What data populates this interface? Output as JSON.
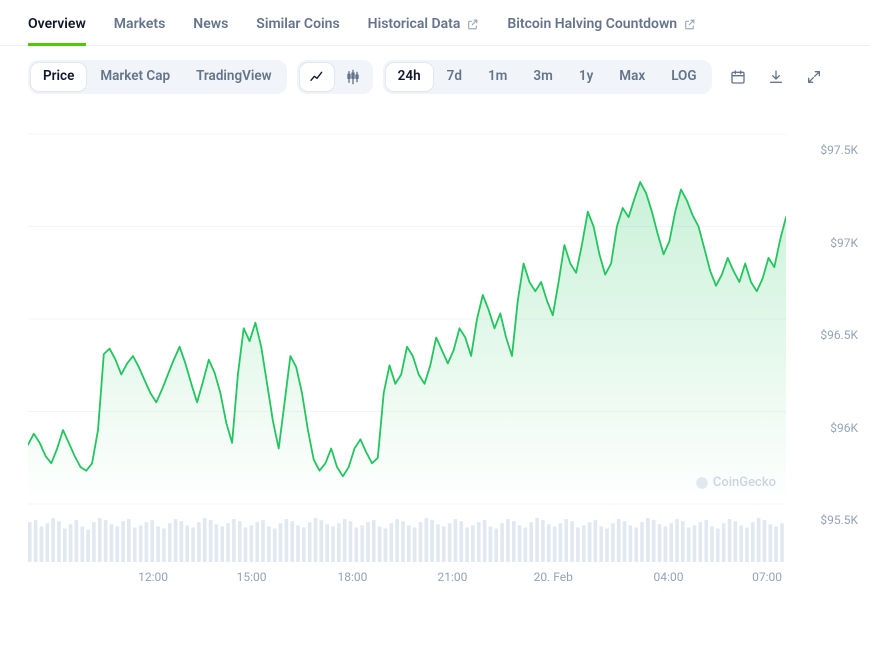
{
  "tabs": {
    "items": [
      {
        "label": "Overview",
        "active": true,
        "external": false
      },
      {
        "label": "Markets",
        "active": false,
        "external": false
      },
      {
        "label": "News",
        "active": false,
        "external": false
      },
      {
        "label": "Similar Coins",
        "active": false,
        "external": false
      },
      {
        "label": "Historical Data",
        "active": false,
        "external": true
      },
      {
        "label": "Bitcoin Halving Countdown",
        "active": false,
        "external": true
      }
    ]
  },
  "toolbar": {
    "metric_toggle": {
      "options": [
        "Price",
        "Market Cap",
        "TradingView"
      ],
      "active_index": 0
    },
    "chart_style_toggle": {
      "active_index": 0,
      "options": [
        "line",
        "candlestick"
      ]
    },
    "range_toggle": {
      "options": [
        "24h",
        "7d",
        "1m",
        "3m",
        "1y",
        "Max",
        "LOG"
      ],
      "active_index": 0
    }
  },
  "chart": {
    "type": "area",
    "line_color": "#22c55e",
    "area_gradient_top": "rgba(34,197,94,0.24)",
    "area_gradient_bottom": "rgba(34,197,94,0.00)",
    "grid_color": "#f1f5f9",
    "background_color": "#ffffff",
    "axis_text_color": "#94a3b8",
    "ymin": 95500,
    "ymax": 97500,
    "y_ticks": [
      {
        "value": 97500,
        "label": "$97.5K"
      },
      {
        "value": 97000,
        "label": "$97K"
      },
      {
        "value": 96500,
        "label": "$96.5K"
      },
      {
        "value": 96000,
        "label": "$96K"
      },
      {
        "value": 95500,
        "label": "$95.5K"
      }
    ],
    "x_ticks": [
      {
        "pos_pct": 16.5,
        "label": "12:00"
      },
      {
        "pos_pct": 29.5,
        "label": "15:00"
      },
      {
        "pos_pct": 42.8,
        "label": "18:00"
      },
      {
        "pos_pct": 56.0,
        "label": "21:00"
      },
      {
        "pos_pct": 69.3,
        "label": "20. Feb"
      },
      {
        "pos_pct": 84.5,
        "label": "04:00"
      },
      {
        "pos_pct": 97.5,
        "label": "07:00"
      }
    ],
    "series": [
      95820,
      95880,
      95830,
      95760,
      95720,
      95800,
      95900,
      95830,
      95760,
      95700,
      95680,
      95720,
      95900,
      96310,
      96340,
      96280,
      96200,
      96260,
      96300,
      96240,
      96170,
      96100,
      96050,
      96120,
      96200,
      96280,
      96350,
      96260,
      96150,
      96050,
      96160,
      96280,
      96210,
      96100,
      95940,
      95830,
      96200,
      96450,
      96380,
      96480,
      96350,
      96150,
      95950,
      95800,
      96050,
      96300,
      96240,
      96100,
      95900,
      95740,
      95680,
      95720,
      95800,
      95700,
      95650,
      95700,
      95800,
      95850,
      95780,
      95720,
      95750,
      96100,
      96250,
      96150,
      96200,
      96350,
      96300,
      96200,
      96150,
      96250,
      96400,
      96330,
      96260,
      96330,
      96450,
      96400,
      96300,
      96500,
      96630,
      96550,
      96450,
      96530,
      96400,
      96300,
      96600,
      96800,
      96700,
      96650,
      96700,
      96600,
      96520,
      96700,
      96900,
      96800,
      96750,
      96900,
      97080,
      97000,
      96850,
      96740,
      96800,
      97000,
      97100,
      97050,
      97150,
      97240,
      97180,
      97080,
      96960,
      96850,
      96920,
      97080,
      97200,
      97140,
      97060,
      97000,
      96880,
      96760,
      96680,
      96740,
      96830,
      96760,
      96700,
      96800,
      96700,
      96650,
      96720,
      96830,
      96780,
      96930,
      97050
    ],
    "watermark": "CoinGecko"
  },
  "volume": {
    "bar_color": "#e2e8f0",
    "bars": [
      34,
      36,
      30,
      33,
      38,
      35,
      28,
      32,
      36,
      30,
      27,
      34,
      38,
      36,
      32,
      30,
      35,
      37,
      29,
      31,
      34,
      36,
      30,
      28,
      33,
      37,
      35,
      31,
      29,
      34,
      38,
      36,
      32,
      30,
      33,
      37,
      35,
      29,
      31,
      34,
      36,
      30,
      28,
      33,
      37,
      35,
      31,
      29,
      34,
      38,
      36,
      32,
      30,
      33,
      37,
      35,
      29,
      31,
      34,
      36,
      30,
      28,
      33,
      37,
      35,
      31,
      29,
      34,
      38,
      36,
      32,
      30,
      33,
      37,
      35,
      29,
      31,
      34,
      36,
      30,
      28,
      33,
      37,
      35,
      31,
      29,
      34,
      38,
      36,
      32,
      30,
      33,
      37,
      35,
      29,
      31,
      34,
      36,
      30,
      28,
      33,
      37,
      35,
      31,
      29,
      34,
      38,
      36,
      32,
      30,
      33,
      37,
      35,
      29,
      31,
      34,
      36,
      30,
      28,
      33,
      37,
      35,
      31,
      29,
      34,
      38,
      36,
      32,
      30,
      33
    ]
  }
}
